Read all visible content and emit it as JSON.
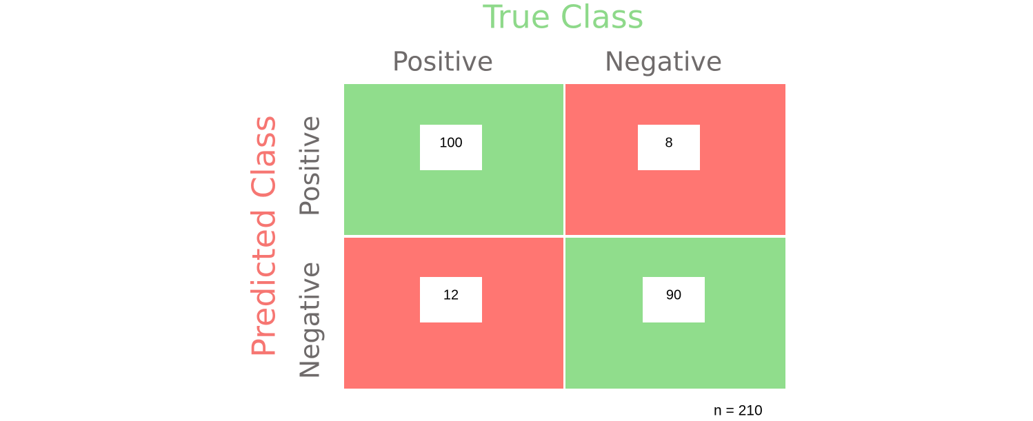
{
  "title": "True Class",
  "y_title": "Predicted Class",
  "columns": [
    "Positive",
    "Negative"
  ],
  "rows": [
    "Positive",
    "Negative"
  ],
  "cells": [
    [
      100,
      8
    ],
    [
      12,
      90
    ]
  ],
  "note": "n = 210"
}
